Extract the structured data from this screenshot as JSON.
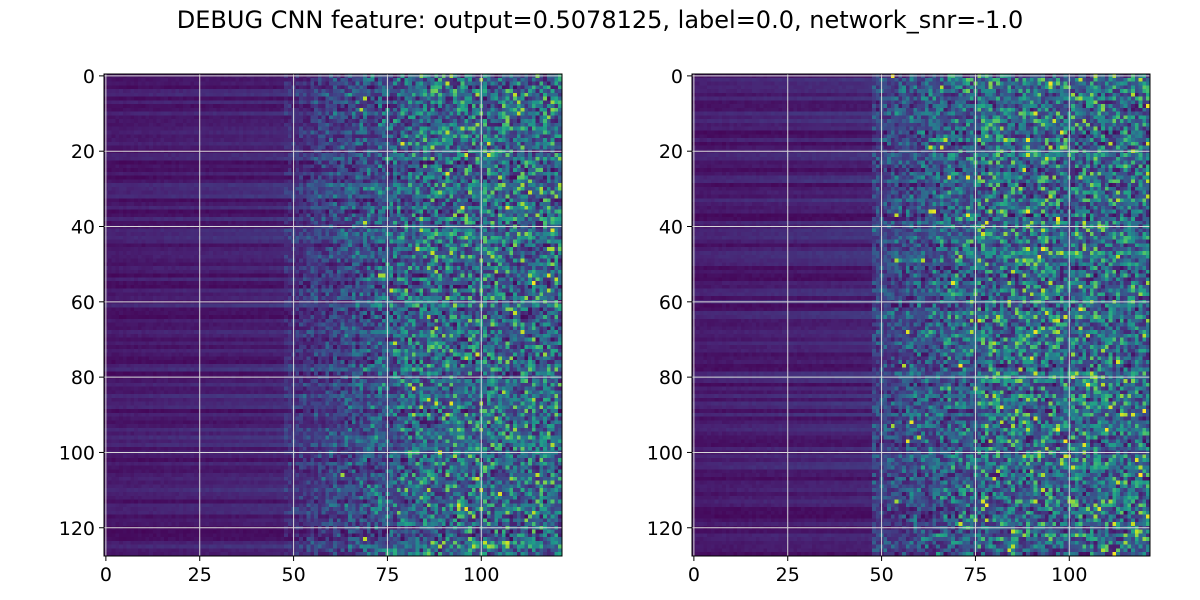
{
  "title": "DEBUG CNN feature: output=0.5078125, label=0.0, network_snr=-1.0",
  "chart_data": [
    {
      "type": "heatmap",
      "title": "",
      "xlabel": "",
      "ylabel": "",
      "xlim": [
        -0.5,
        121.5
      ],
      "ylim": [
        127.5,
        -0.5
      ],
      "xticks": [
        0,
        25,
        50,
        75,
        100
      ],
      "xtick_labels": [
        "0",
        "25",
        "50",
        "75",
        "100"
      ],
      "yticks": [
        0,
        20,
        40,
        60,
        80,
        100,
        120
      ],
      "ytick_labels": [
        "0",
        "20",
        "40",
        "60",
        "80",
        "100",
        "120"
      ],
      "grid": true,
      "colormap": "viridis",
      "rows": 128,
      "cols": 122,
      "description": "low-valued (dark purple) columns 0-50 with horizontal row banding, increasingly noisy green/yellow speckle from ~column 60 onward"
    },
    {
      "type": "heatmap",
      "title": "",
      "xlabel": "",
      "ylabel": "",
      "xlim": [
        -0.5,
        121.5
      ],
      "ylim": [
        127.5,
        -0.5
      ],
      "xticks": [
        0,
        25,
        50,
        75,
        100
      ],
      "xtick_labels": [
        "0",
        "25",
        "50",
        "75",
        "100"
      ],
      "yticks": [
        0,
        20,
        40,
        60,
        80,
        100,
        120
      ],
      "ytick_labels": [
        "0",
        "20",
        "40",
        "60",
        "80",
        "100",
        "120"
      ],
      "grid": true,
      "colormap": "viridis",
      "rows": 128,
      "cols": 122,
      "description": "low-valued (dark purple) columns 0-50 with horizontal row banding, noisy speckle with scattered yellow hot pixels from ~column 50 onward"
    }
  ]
}
